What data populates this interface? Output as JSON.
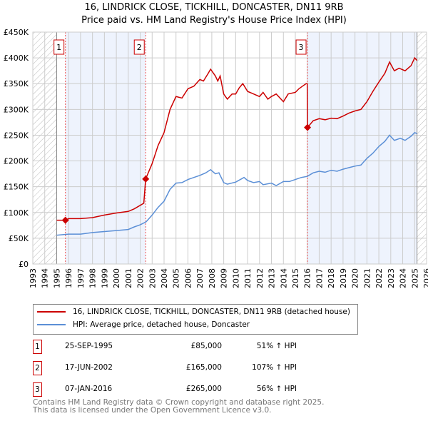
{
  "chart_data": {
    "type": "line",
    "title": "16, LINDRICK CLOSE, TICKHILL, DONCASTER, DN11 9RB",
    "subtitle": "Price paid vs. HM Land Registry's House Price Index (HPI)",
    "xlim": [
      1993,
      2026
    ],
    "ylim": [
      0,
      450000
    ],
    "x_ticks": [
      "1993",
      "1994",
      "1995",
      "1996",
      "1997",
      "1998",
      "1999",
      "2000",
      "2001",
      "2002",
      "2003",
      "2004",
      "2005",
      "2006",
      "2007",
      "2008",
      "2009",
      "2010",
      "2011",
      "2012",
      "2013",
      "2014",
      "2015",
      "2016",
      "2017",
      "2018",
      "2019",
      "2020",
      "2021",
      "2022",
      "2023",
      "2024",
      "2025",
      "2026"
    ],
    "y_ticks": [
      {
        "v": 0,
        "label": "£0"
      },
      {
        "v": 50000,
        "label": "£50K"
      },
      {
        "v": 100000,
        "label": "£100K"
      },
      {
        "v": 150000,
        "label": "£150K"
      },
      {
        "v": 200000,
        "label": "£200K"
      },
      {
        "v": 250000,
        "label": "£250K"
      },
      {
        "v": 300000,
        "label": "£300K"
      },
      {
        "v": 350000,
        "label": "£350K"
      },
      {
        "v": 400000,
        "label": "£400K"
      },
      {
        "v": 450000,
        "label": "£450K"
      }
    ],
    "grid": true,
    "hatched_ranges": [
      [
        1993,
        1995
      ],
      [
        2025.2,
        2026
      ]
    ],
    "shaded_ranges": [
      [
        1995.73,
        2002.46
      ],
      [
        2016.02,
        2025.2
      ]
    ],
    "series": [
      {
        "name": "16, LINDRICK CLOSE, TICKHILL, DONCASTER, DN11 9RB (detached house)",
        "color": "#cc0000",
        "x": [
          1995,
          1995.73,
          1996,
          1997,
          1998,
          1999,
          2000,
          2001,
          2001.5,
          2002.3,
          2002.46,
          2003,
          2003.5,
          2004,
          2004.5,
          2005,
          2005.5,
          2006,
          2006.5,
          2007,
          2007.3,
          2007.7,
          2007.9,
          2008.3,
          2008.5,
          2008.7,
          2009,
          2009.3,
          2009.7,
          2010,
          2010.3,
          2010.6,
          2011,
          2011.5,
          2012,
          2012.3,
          2012.7,
          2013,
          2013.4,
          2013.8,
          2014,
          2014.4,
          2015,
          2015.3,
          2015.6,
          2015.9,
          2016.0,
          2016.02,
          2016.5,
          2017,
          2017.5,
          2018,
          2018.5,
          2019,
          2019.5,
          2020,
          2020.5,
          2021,
          2021.5,
          2022,
          2022.5,
          2022.9,
          2023.3,
          2023.7,
          2024.2,
          2024.7,
          2025,
          2025.2
        ],
        "y": [
          85000,
          85000,
          88000,
          88000,
          90000,
          95000,
          99000,
          102000,
          107000,
          118000,
          165000,
          195000,
          230000,
          255000,
          300000,
          325000,
          322000,
          340000,
          345000,
          358000,
          355000,
          370000,
          378000,
          365000,
          355000,
          365000,
          330000,
          320000,
          330000,
          330000,
          342000,
          350000,
          335000,
          330000,
          325000,
          333000,
          320000,
          325000,
          330000,
          320000,
          315000,
          330000,
          333000,
          340000,
          345000,
          350000,
          350000,
          265000,
          278000,
          282000,
          280000,
          283000,
          282000,
          287000,
          293000,
          297000,
          300000,
          315000,
          335000,
          353000,
          370000,
          392000,
          375000,
          380000,
          375000,
          385000,
          400000,
          395000
        ]
      },
      {
        "name": "HPI: Average price, detached house, Doncaster",
        "color": "#5b8fd6",
        "x": [
          1995,
          1996,
          1997,
          1998,
          1999,
          2000,
          2001,
          2001.5,
          2002,
          2002.5,
          2003,
          2003.5,
          2004,
          2004.5,
          2005,
          2005.5,
          2006,
          2006.5,
          2007,
          2007.5,
          2007.9,
          2008.3,
          2008.6,
          2009,
          2009.3,
          2010,
          2010.7,
          2011,
          2011.5,
          2012,
          2012.3,
          2013,
          2013.4,
          2014,
          2014.5,
          2015,
          2015.5,
          2016,
          2016.5,
          2017,
          2017.5,
          2018,
          2018.5,
          2019,
          2019.5,
          2020,
          2020.5,
          2021,
          2021.5,
          2022,
          2022.5,
          2022.9,
          2023.3,
          2023.8,
          2024.2,
          2024.7,
          2025,
          2025.2
        ],
        "y": [
          56000,
          58000,
          58000,
          61000,
          63000,
          65000,
          67000,
          72000,
          76000,
          82000,
          95000,
          110000,
          122000,
          145000,
          157000,
          158000,
          164000,
          168000,
          172000,
          177000,
          183000,
          175000,
          177000,
          158000,
          155000,
          159000,
          168000,
          162000,
          158000,
          160000,
          154000,
          157000,
          152000,
          160000,
          160000,
          164000,
          168000,
          170000,
          177000,
          180000,
          178000,
          182000,
          180000,
          184000,
          187000,
          190000,
          192000,
          205000,
          215000,
          228000,
          238000,
          250000,
          240000,
          244000,
          240000,
          248000,
          255000,
          253000
        ]
      }
    ],
    "sales": [
      {
        "id": "1",
        "x": 1995.73,
        "price": 85000
      },
      {
        "id": "2",
        "x": 2002.46,
        "price": 165000
      },
      {
        "id": "3",
        "x": 2016.02,
        "price": 265000
      }
    ]
  },
  "legend": {
    "property": "16, LINDRICK CLOSE, TICKHILL, DONCASTER, DN11 9RB (detached house)",
    "hpi": "HPI: Average price, detached house, Doncaster"
  },
  "transactions": [
    {
      "id": "1",
      "date": "25-SEP-1995",
      "price": "£85,000",
      "hpi": "51% ↑ HPI"
    },
    {
      "id": "2",
      "date": "17-JUN-2002",
      "price": "£165,000",
      "hpi": "107% ↑ HPI"
    },
    {
      "id": "3",
      "date": "07-JAN-2016",
      "price": "£265,000",
      "hpi": "56% ↑ HPI"
    }
  ],
  "footer": {
    "line1": "Contains HM Land Registry data © Crown copyright and database right 2025.",
    "line2": "This data is licensed under the Open Government Licence v3.0."
  }
}
